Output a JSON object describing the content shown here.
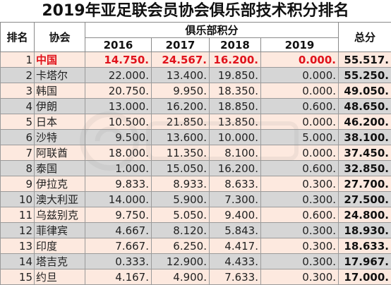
{
  "title": "2019年亚足联会员协会俱乐部技术积分排名",
  "headers": {
    "rank": "排名",
    "assoc": "协会",
    "group": "俱乐部积分",
    "years": [
      "2016",
      "2017",
      "2018",
      "2019"
    ],
    "total": "总分"
  },
  "rows": [
    {
      "rank": "1",
      "team": "中国",
      "v": [
        "14.750.",
        "24.567.",
        "16.200.",
        "0.000."
      ],
      "total": "55.517."
    },
    {
      "rank": "2",
      "team": "卡塔尔",
      "v": [
        "22.000.",
        "13.400.",
        "19.850.",
        "0.000."
      ],
      "total": "55.250."
    },
    {
      "rank": "3",
      "team": "韩国",
      "v": [
        "20.750.",
        "9.950.",
        "18.350.",
        "0.000."
      ],
      "total": "49.050."
    },
    {
      "rank": "4",
      "team": "伊朗",
      "v": [
        "13.000.",
        "16.200.",
        "18.850.",
        "0.600."
      ],
      "total": "48.650."
    },
    {
      "rank": "5",
      "team": "日本",
      "v": [
        "10.500.",
        "21.850.",
        "13.850.",
        "0.000."
      ],
      "total": "46.200."
    },
    {
      "rank": "6",
      "team": "沙特",
      "v": [
        "9.500.",
        "13.600.",
        "10.000.",
        "5.000."
      ],
      "total": "38.100."
    },
    {
      "rank": "7",
      "team": "阿联酋",
      "v": [
        "18.000.",
        "11.350.",
        "8.100.",
        "0.000."
      ],
      "total": "37.450."
    },
    {
      "rank": "8",
      "team": "泰国",
      "v": [
        "1.000.",
        "15.050.",
        "16.200.",
        "0.600."
      ],
      "total": "32.850."
    },
    {
      "rank": "9",
      "team": "伊拉克",
      "v": [
        "9.833.",
        "8.933.",
        "8.633.",
        "0.300."
      ],
      "total": "27.700."
    },
    {
      "rank": "10",
      "team": "澳大利亚",
      "v": [
        "14.000.",
        "5.900.",
        "7.300.",
        "0.300."
      ],
      "total": "27.500."
    },
    {
      "rank": "11",
      "team": "乌兹别克",
      "v": [
        "9.750.",
        "5.050.",
        "9.400.",
        "0.600."
      ],
      "total": "24.800."
    },
    {
      "rank": "12",
      "team": "菲律宾",
      "v": [
        "4.667.",
        "8.120.",
        "5.843.",
        "0.300."
      ],
      "total": "18.930."
    },
    {
      "rank": "13",
      "team": "印度",
      "v": [
        "7.667.",
        "6.250.",
        "4.417.",
        "0.300."
      ],
      "total": "18.633."
    },
    {
      "rank": "14",
      "team": "塔吉克",
      "v": [
        "0.333.",
        "12.900.",
        "4.433.",
        "0.300."
      ],
      "total": "17.967."
    },
    {
      "rank": "15",
      "team": "约旦",
      "v": [
        "4.167.",
        "4.900.",
        "7.633.",
        "0.300."
      ],
      "total": "17.000."
    }
  ],
  "watermark": {
    "icon": "watermark-logo-icon"
  }
}
